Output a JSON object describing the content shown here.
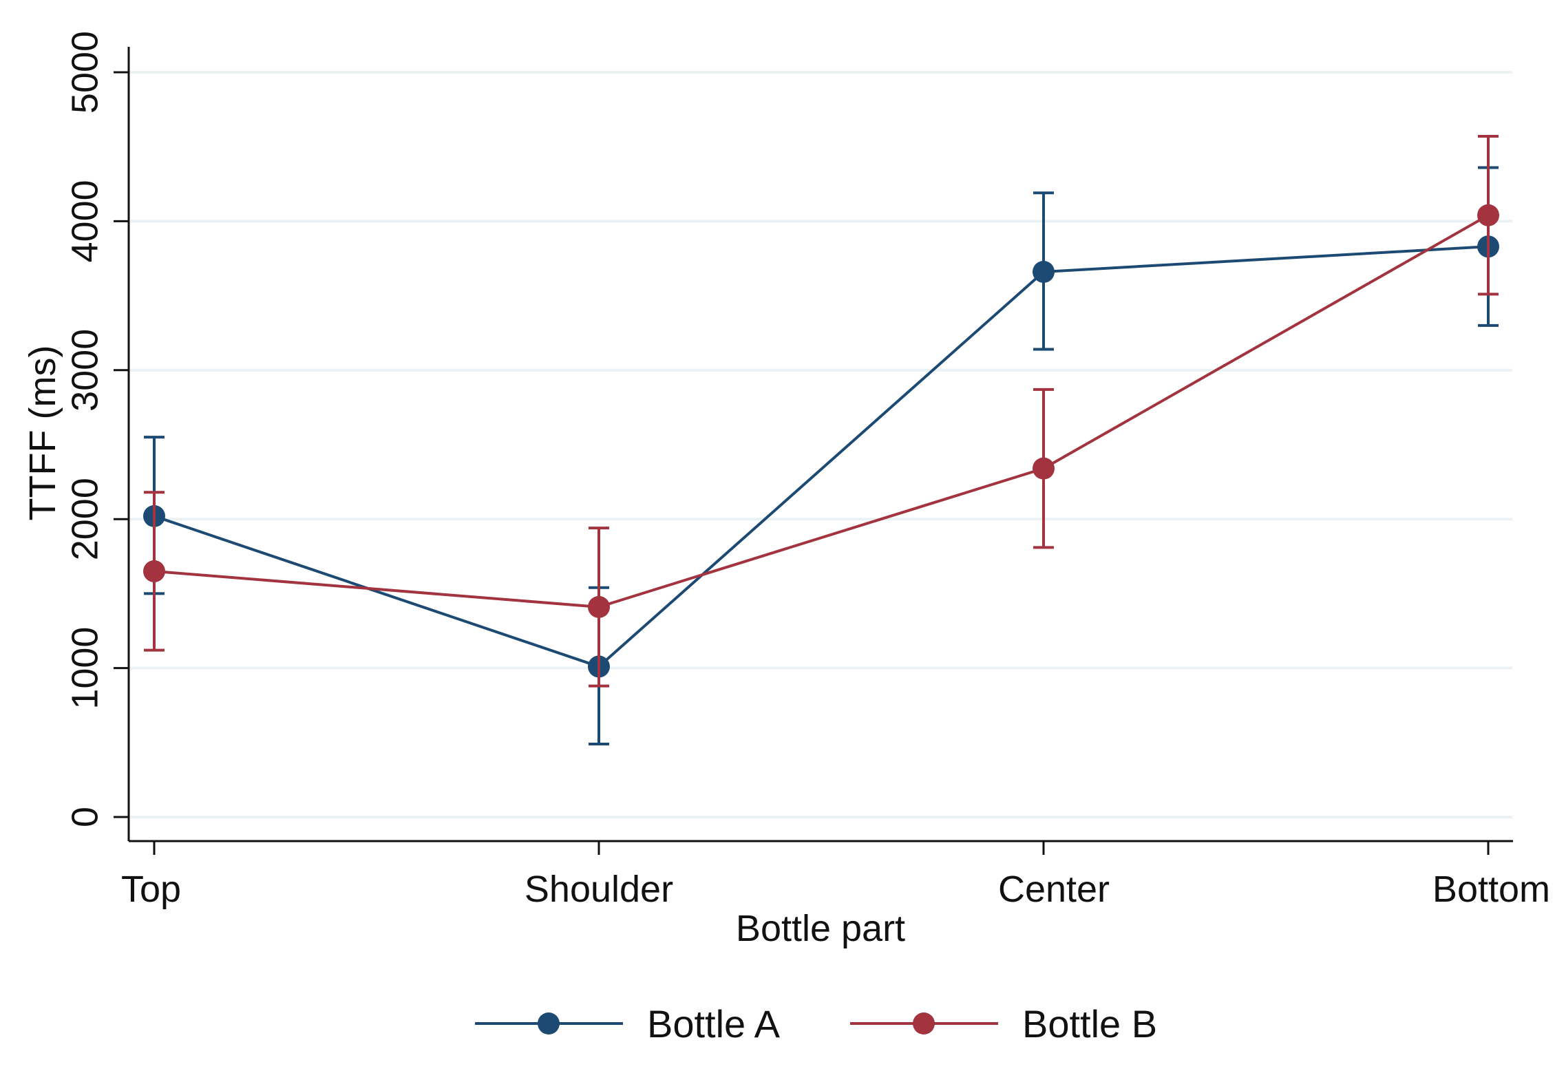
{
  "chart_data": {
    "type": "line",
    "title": "",
    "xlabel": "Bottle part",
    "ylabel": "TTFF (ms)",
    "categories": [
      "Top",
      "Shoulder",
      "Center",
      "Bottom"
    ],
    "ylim": [
      0,
      5000
    ],
    "yticks": [
      "0",
      "1000",
      "2000",
      "3000",
      "4000",
      "5000"
    ],
    "grid": true,
    "legend_position": "bottom",
    "series": [
      {
        "name": "Bottle A",
        "color": "#1d4a73",
        "values": [
          2020,
          1010,
          3660,
          3830
        ],
        "ci_low": [
          1500,
          490,
          3140,
          3300
        ],
        "ci_high": [
          2550,
          1540,
          4190,
          4360
        ]
      },
      {
        "name": "Bottle B",
        "color": "#a3343f",
        "values": [
          1650,
          1410,
          2340,
          4040
        ],
        "ci_low": [
          1120,
          880,
          1810,
          3510
        ],
        "ci_high": [
          2180,
          1940,
          2870,
          4570
        ]
      }
    ]
  }
}
